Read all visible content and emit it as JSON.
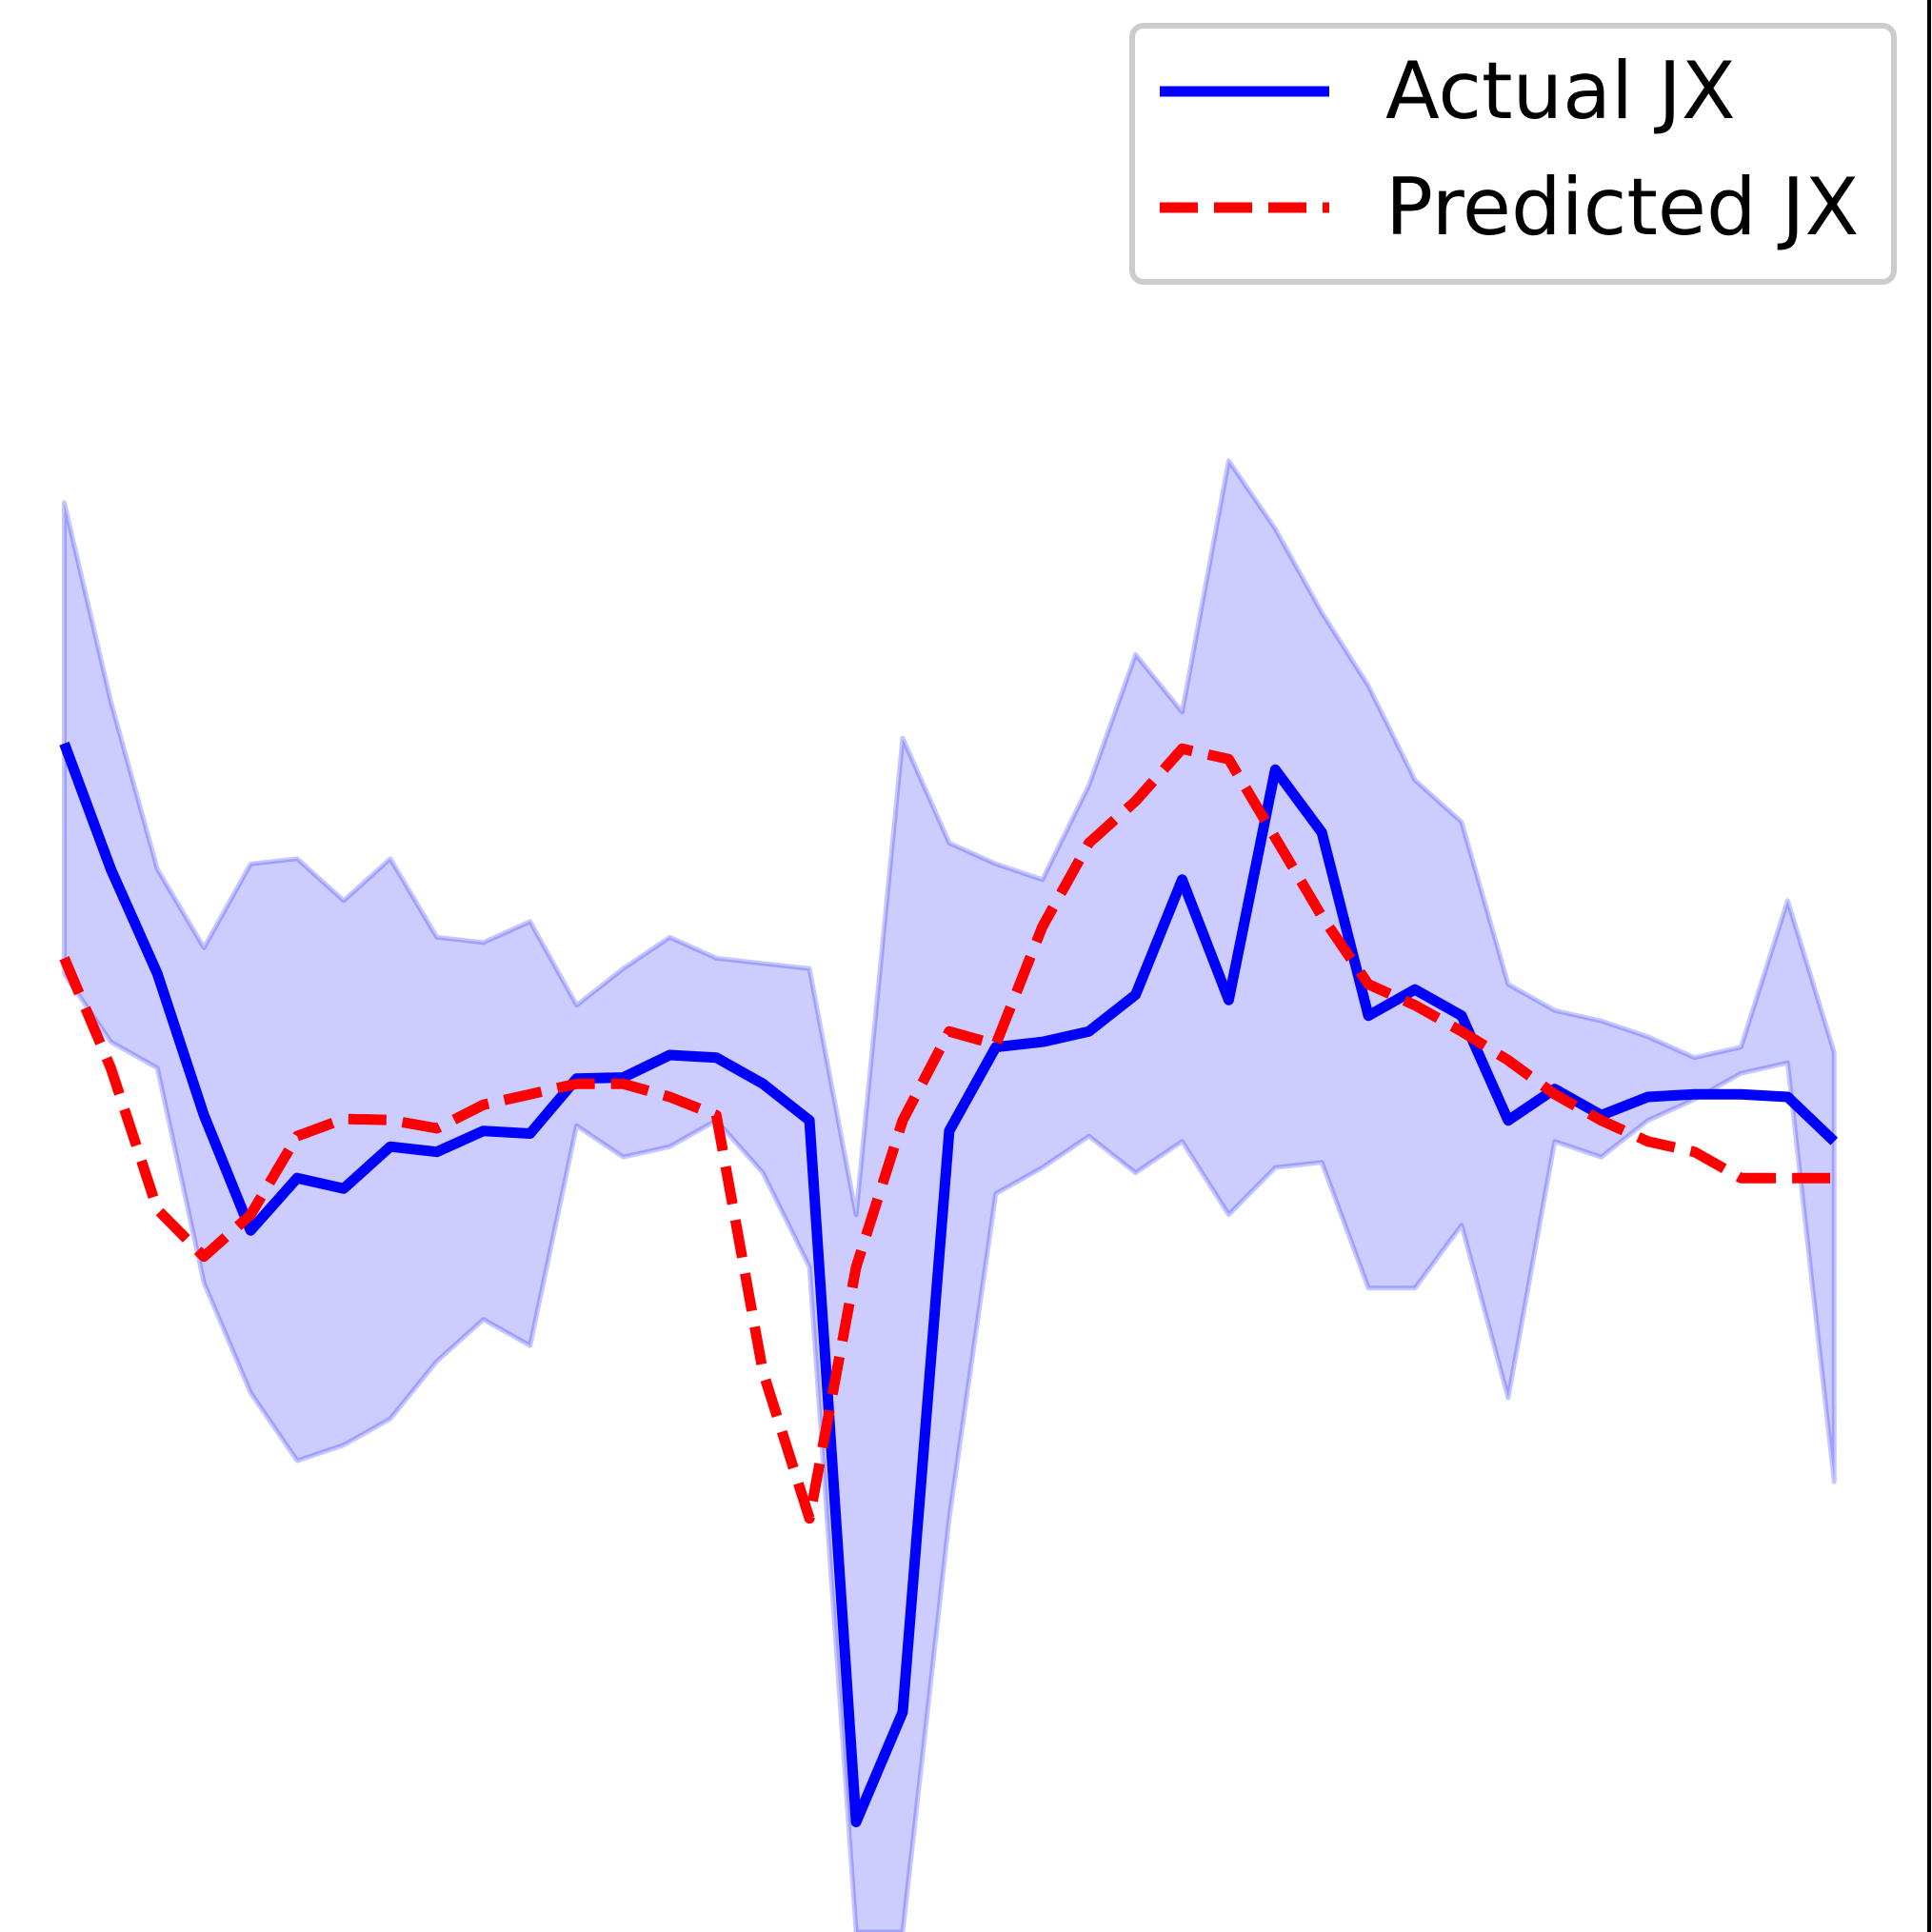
{
  "chart_data": {
    "type": "line",
    "title": "",
    "xlabel": "",
    "ylabel": "",
    "grid": false,
    "x": [
      0,
      1,
      2,
      3,
      4,
      5,
      6,
      7,
      8,
      9,
      10,
      11,
      12,
      13,
      14,
      15,
      16,
      17,
      18,
      19,
      20,
      21,
      22,
      23,
      24,
      25,
      26,
      27,
      28,
      29,
      30,
      31,
      32,
      33,
      34,
      35,
      36,
      37,
      38
    ],
    "xlim": [
      -1.38,
      40.1
    ],
    "ylim": [
      -1.75,
      1.94
    ],
    "series": [
      {
        "name": "Actual JX",
        "style": "solid",
        "color": "#0000ff",
        "values": [
          0.52,
          0.28,
          0.08,
          -0.19,
          -0.41,
          -0.31,
          -0.33,
          -0.25,
          -0.26,
          -0.22,
          -0.225,
          -0.12,
          -0.118,
          -0.075,
          -0.08,
          -0.13,
          -0.2,
          -1.54,
          -1.33,
          -0.22,
          -0.06,
          -0.05,
          -0.03,
          0.04,
          0.26,
          0.03,
          0.47,
          0.35,
          0.0,
          0.05,
          0.0,
          -0.2,
          -0.14,
          -0.19,
          -0.155,
          -0.15,
          -0.15,
          -0.155,
          -0.24
        ]
      },
      {
        "name": "Predicted JX",
        "style": "dashed",
        "color": "#ff0000",
        "values": [
          0.11,
          -0.1,
          -0.37,
          -0.46,
          -0.38,
          -0.23,
          -0.197,
          -0.199,
          -0.215,
          -0.17,
          -0.15,
          -0.13,
          -0.13,
          -0.155,
          -0.19,
          -0.68,
          -0.96,
          -0.48,
          -0.2,
          -0.03,
          -0.055,
          0.17,
          0.33,
          0.41,
          0.51,
          0.49,
          0.34,
          0.19,
          0.06,
          0.02,
          -0.03,
          -0.085,
          -0.15,
          -0.2,
          -0.24,
          -0.26,
          -0.31,
          -0.31,
          -0.31
        ]
      },
      {
        "name": "Band upper",
        "style": "fill",
        "color": "#0000ff",
        "values": [
          0.98,
          0.6,
          0.28,
          0.13,
          0.29,
          0.3,
          0.22,
          0.3,
          0.15,
          0.14,
          0.18,
          0.02,
          0.09,
          0.15,
          0.11,
          0.1,
          0.09,
          -0.38,
          0.53,
          0.33,
          0.29,
          0.26,
          0.44,
          0.69,
          0.58,
          1.06,
          0.93,
          0.77,
          0.63,
          0.45,
          0.37,
          0.06,
          0.01,
          -0.01,
          -0.04,
          -0.08,
          -0.06,
          0.22,
          -0.07
        ],
        "lower_values": [
          0.08,
          -0.05,
          -0.1,
          -0.51,
          -0.72,
          -0.85,
          -0.82,
          -0.77,
          -0.66,
          -0.58,
          -0.63,
          -0.21,
          -0.27,
          -0.25,
          -0.2,
          -0.3,
          -0.48,
          -1.75,
          -1.75,
          -0.96,
          -0.34,
          -0.29,
          -0.23,
          -0.3,
          -0.24,
          -0.38,
          -0.29,
          -0.28,
          -0.52,
          -0.52,
          -0.4,
          -0.73,
          -0.24,
          -0.27,
          -0.2,
          -0.16,
          -0.11,
          -0.09,
          -0.89
        ]
      }
    ],
    "legend": {
      "position": "top-right",
      "entries": [
        "Actual JX",
        "Predicted JX"
      ]
    }
  }
}
